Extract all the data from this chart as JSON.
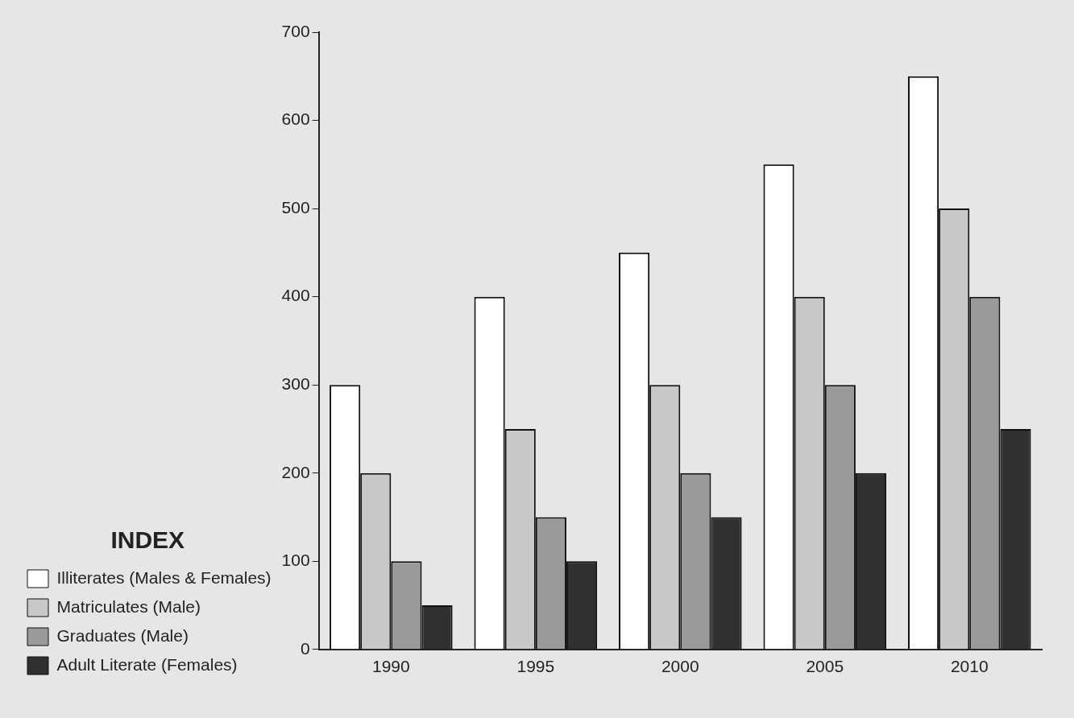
{
  "chart_data": {
    "type": "bar",
    "categories": [
      "1990",
      "1995",
      "2000",
      "2005",
      "2010"
    ],
    "series": [
      {
        "name": "Illiterates (Males & Females)",
        "color": "#ffffff",
        "values": [
          300,
          400,
          450,
          550,
          650
        ]
      },
      {
        "name": "Matriculates (Male)",
        "color": "#c8c8c8",
        "values": [
          200,
          250,
          300,
          400,
          500
        ]
      },
      {
        "name": "Graduates (Male)",
        "color": "#9a9a9a",
        "values": [
          100,
          150,
          200,
          300,
          400
        ]
      },
      {
        "name": "Adult Literate (Females)",
        "color": "#303030",
        "values": [
          50,
          100,
          150,
          200,
          250
        ]
      }
    ],
    "ylim": [
      0,
      700
    ],
    "yticks": [
      0,
      100,
      200,
      300,
      400,
      500,
      600,
      700
    ],
    "grid": false,
    "legend": "left",
    "legend_title": "INDEX"
  }
}
